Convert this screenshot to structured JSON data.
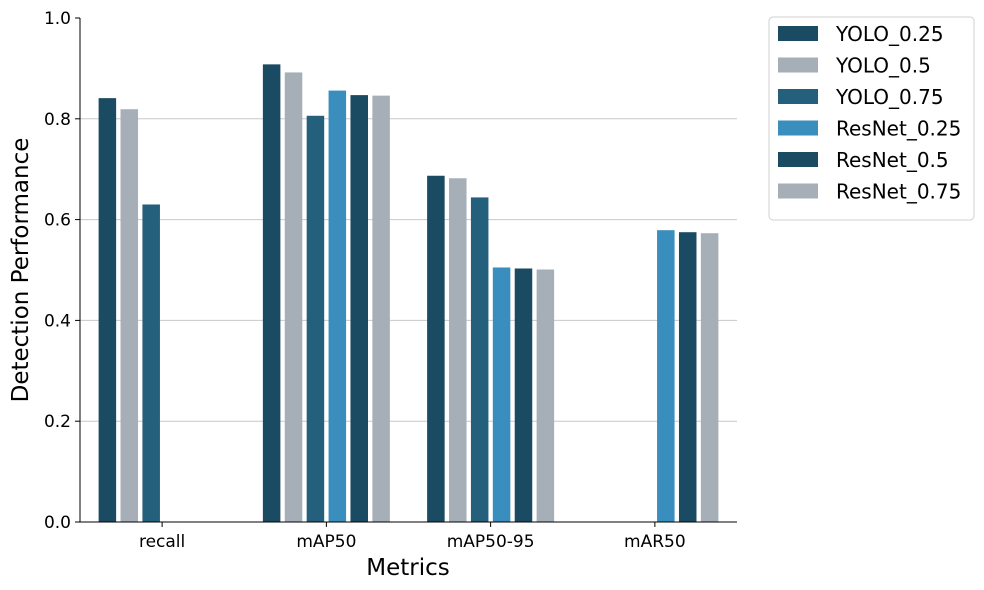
{
  "chart_data": {
    "type": "bar",
    "categories": [
      "recall",
      "mAP50",
      "mAP50-95",
      "mAR50"
    ],
    "series": [
      {
        "name": "YOLO_0.25",
        "color": "#1b4a63",
        "values": [
          0.841,
          0.908,
          0.687,
          null
        ]
      },
      {
        "name": "YOLO_0.5",
        "color": "#a6afb8",
        "values": [
          0.819,
          0.892,
          0.682,
          null
        ]
      },
      {
        "name": "YOLO_0.75",
        "color": "#245f7b",
        "values": [
          0.63,
          0.806,
          0.644,
          null
        ]
      },
      {
        "name": "ResNet_0.25",
        "color": "#3a8ebd",
        "values": [
          null,
          0.856,
          0.505,
          0.579
        ]
      },
      {
        "name": "ResNet_0.5",
        "color": "#1b4a63",
        "values": [
          null,
          0.847,
          0.503,
          0.575
        ]
      },
      {
        "name": "ResNet_0.75",
        "color": "#a6afb8",
        "values": [
          null,
          0.846,
          0.501,
          0.573
        ]
      }
    ],
    "xlabel": "Metrics",
    "ylabel": "Detection Performance",
    "ylim": [
      0,
      1.0
    ],
    "yticks": [
      "0.0",
      "0.2",
      "0.4",
      "0.6",
      "0.8",
      "1.0"
    ],
    "grid": "y",
    "legend": "outside-top-right"
  }
}
